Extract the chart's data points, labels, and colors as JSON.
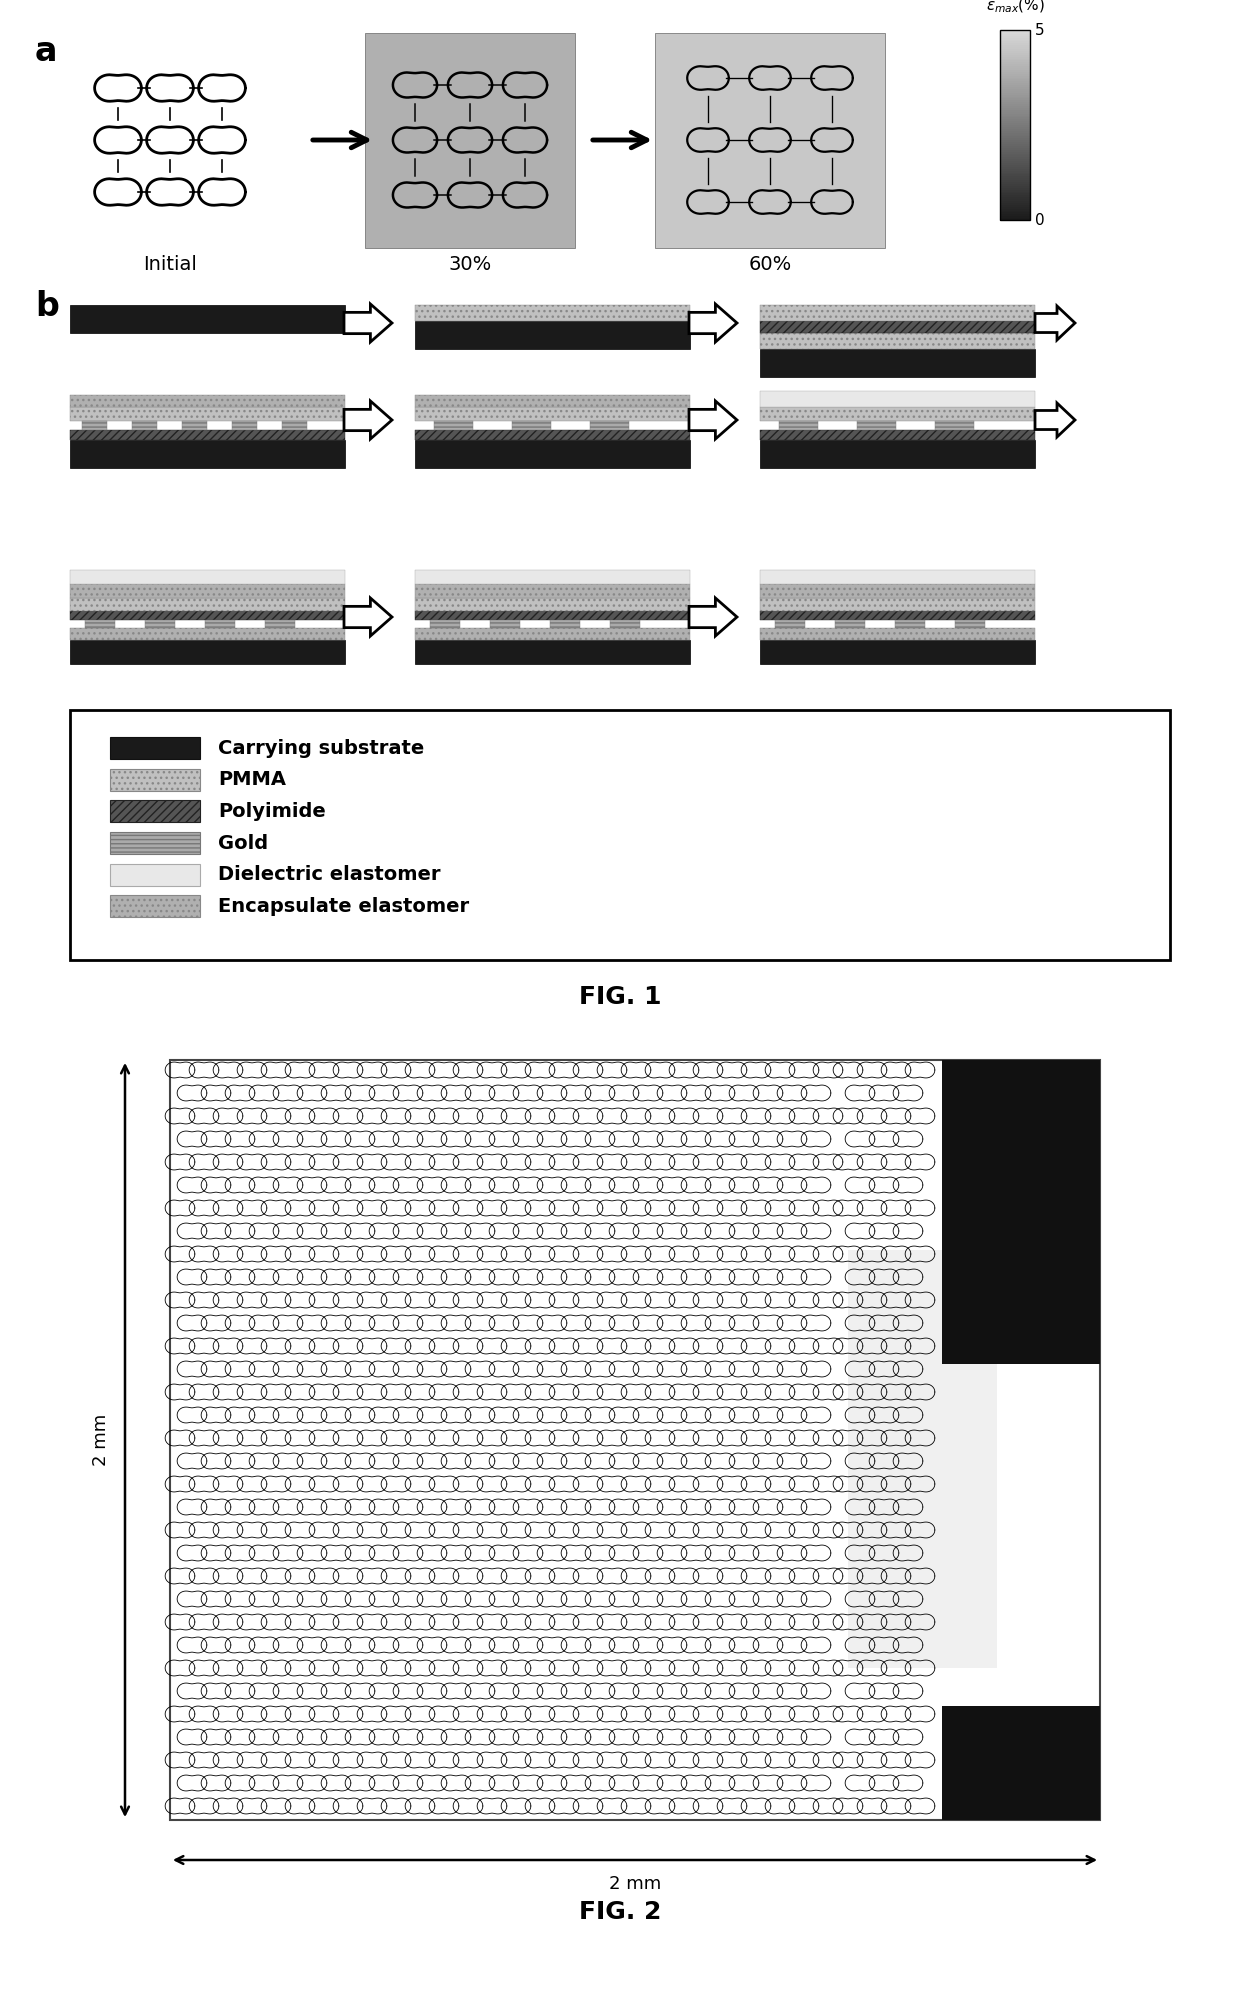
{
  "fig_width": 12.4,
  "fig_height": 19.96,
  "bg_color": "#ffffff",
  "panel_a_label": "a",
  "panel_b_label": "b",
  "fig1_label": "FIG. 1",
  "fig2_label": "FIG. 2",
  "initial_label": "Initial",
  "pct30_label": "30%",
  "pct60_label": "60%",
  "colorbar_ticks": [
    "5",
    "0"
  ],
  "legend_items": [
    {
      "label": "Carrying substrate",
      "fc": "#1a1a1a",
      "hatch": ""
    },
    {
      "label": "PMMA",
      "fc": "#c8c8c8",
      "hatch": "..."
    },
    {
      "label": "Polyimide",
      "fc": "#555555",
      "hatch": "////"
    },
    {
      "label": "Gold",
      "fc": "#999999",
      "hatch": "----"
    },
    {
      "label": "Dielectric elastomer",
      "fc": "#e8e8e8",
      "hatch": "..."
    },
    {
      "label": "Encapsulate elastomer",
      "fc": "#b0b0b0",
      "hatch": "..."
    }
  ]
}
